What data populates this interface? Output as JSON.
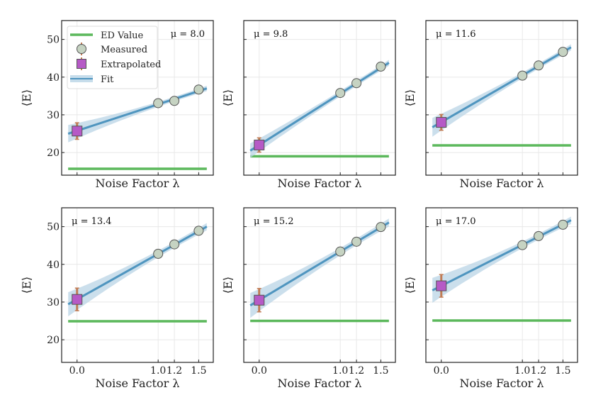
{
  "chart_data": {
    "type": "scatter",
    "title": "",
    "layout": "2x3 grid",
    "shared_xlabel": "Noise Factor λ",
    "shared_ylabel": "⟨E⟩",
    "xlim": [
      -0.19,
      1.68
    ],
    "ylim": [
      14,
      55
    ],
    "xticks": [
      0.0,
      1.0,
      1.2,
      1.5
    ],
    "xtick_labels": [
      "0.0",
      "1.0",
      "1.2",
      "1.5"
    ],
    "yticks": [
      20,
      30,
      40,
      50
    ],
    "ytick_labels": [
      "20",
      "30",
      "40",
      "50"
    ],
    "grid": true,
    "legend": {
      "placement": "top-left",
      "panel": 0,
      "entries": [
        "ED Value",
        "Measured",
        "Extrapolated",
        "Fit"
      ]
    },
    "colors": {
      "ed_value": "#5cb85c",
      "fit_line": "#4f95bf",
      "fit_band": "#b9d4e6",
      "measured_fill": "#c6d3c2",
      "measured_edge": "#555555",
      "extrapolated_fill": "#b65ac6",
      "extrapolated_edge": "#555555",
      "errorbar": "#c17c55"
    },
    "panels": [
      {
        "annotation": "μ = 8.0",
        "ed_value": 15.7,
        "measured": {
          "x": [
            1.0,
            1.2,
            1.5
          ],
          "y": [
            33.1,
            33.7,
            36.7
          ]
        },
        "extrapolated": {
          "x": 0.0,
          "y": 25.7,
          "err": 2.2
        },
        "fit": {
          "x_range": [
            -0.11,
            1.6
          ],
          "y_range": [
            25.0,
            37.0
          ],
          "band_halfwidth_at_x0": 2.3,
          "band_halfwidth_at_end": 0.6
        },
        "show_xtick_labels": false,
        "show_ytick_labels": true
      },
      {
        "annotation": "μ = 9.8",
        "ed_value": 19.0,
        "measured": {
          "x": [
            1.0,
            1.2,
            1.5
          ],
          "y": [
            35.8,
            38.4,
            42.8
          ]
        },
        "extrapolated": {
          "x": 0.0,
          "y": 22.0,
          "err": 1.9
        },
        "fit": {
          "x_range": [
            -0.11,
            1.6
          ],
          "y_range": [
            20.5,
            43.8
          ],
          "band_halfwidth_at_x0": 1.9,
          "band_halfwidth_at_end": 0.7
        },
        "show_xtick_labels": false,
        "show_ytick_labels": false
      },
      {
        "annotation": "μ = 11.6",
        "ed_value": 21.9,
        "measured": {
          "x": [
            1.0,
            1.2,
            1.5
          ],
          "y": [
            40.4,
            43.1,
            46.7
          ]
        },
        "extrapolated": {
          "x": 0.0,
          "y": 28.0,
          "err": 2.1
        },
        "fit": {
          "x_range": [
            -0.11,
            1.6
          ],
          "y_range": [
            26.7,
            47.9
          ],
          "band_halfwidth_at_x0": 2.5,
          "band_halfwidth_at_end": 0.7
        },
        "show_xtick_labels": false,
        "show_ytick_labels": false
      },
      {
        "annotation": "μ = 13.4",
        "ed_value": 24.9,
        "measured": {
          "x": [
            1.0,
            1.2,
            1.5
          ],
          "y": [
            42.8,
            45.3,
            48.9
          ]
        },
        "extrapolated": {
          "x": 0.0,
          "y": 30.7,
          "err": 3.0
        },
        "fit": {
          "x_range": [
            -0.11,
            1.6
          ],
          "y_range": [
            29.4,
            50.0
          ],
          "band_halfwidth_at_x0": 3.2,
          "band_halfwidth_at_end": 0.8
        },
        "show_xtick_labels": true,
        "show_ytick_labels": true
      },
      {
        "annotation": "μ = 15.2",
        "ed_value": 25.0,
        "measured": {
          "x": [
            1.0,
            1.2,
            1.5
          ],
          "y": [
            43.4,
            46.0,
            49.9
          ]
        },
        "extrapolated": {
          "x": 0.0,
          "y": 30.5,
          "err": 3.1
        },
        "fit": {
          "x_range": [
            -0.11,
            1.6
          ],
          "y_range": [
            29.1,
            51.1
          ],
          "band_halfwidth_at_x0": 3.3,
          "band_halfwidth_at_end": 0.9
        },
        "show_xtick_labels": true,
        "show_ytick_labels": false
      },
      {
        "annotation": "μ = 17.0",
        "ed_value": 25.1,
        "measured": {
          "x": [
            1.0,
            1.2,
            1.5
          ],
          "y": [
            45.1,
            47.5,
            50.5
          ]
        },
        "extrapolated": {
          "x": 0.0,
          "y": 34.3,
          "err": 3.0
        },
        "fit": {
          "x_range": [
            -0.11,
            1.6
          ],
          "y_range": [
            33.1,
            51.7
          ],
          "band_halfwidth_at_x0": 3.3,
          "band_halfwidth_at_end": 0.8
        },
        "show_xtick_labels": true,
        "show_ytick_labels": false
      }
    ]
  }
}
